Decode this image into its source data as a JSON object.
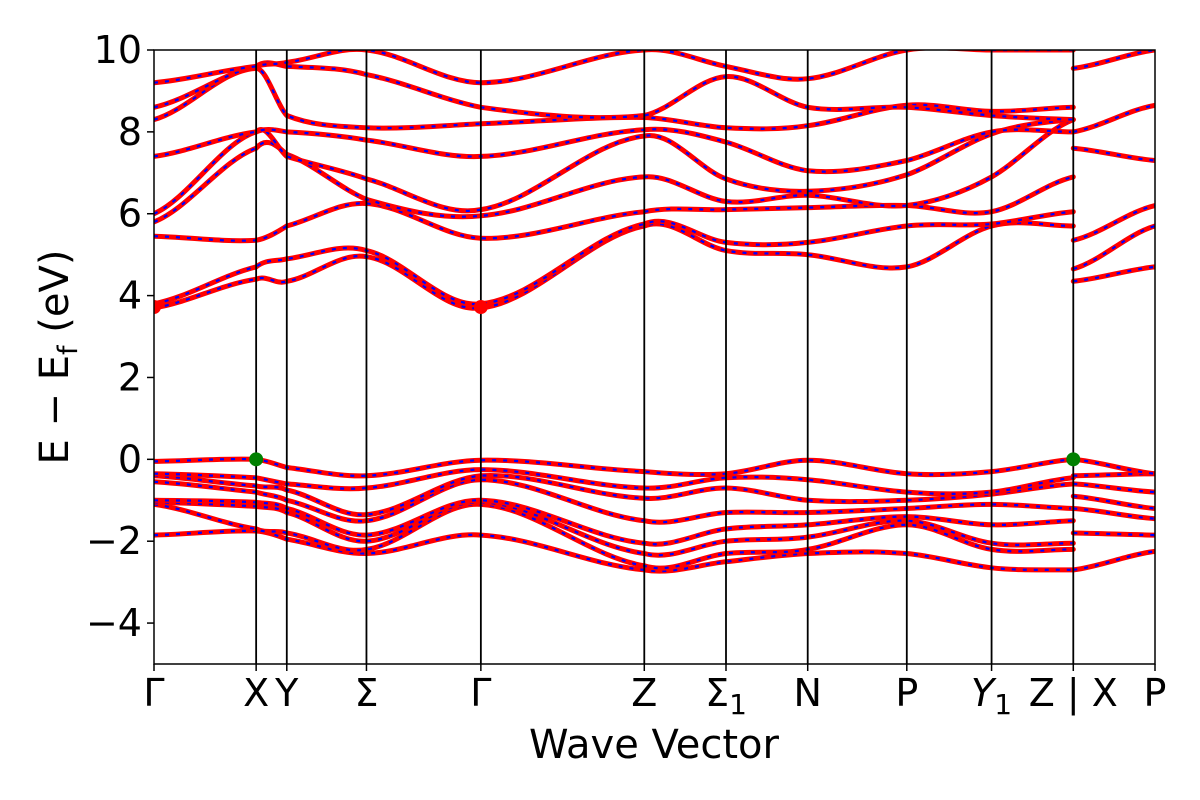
{
  "chart_data": {
    "type": "line",
    "xlabel": "Wave Vector",
    "ylabel": "E − E",
    "ylabel_sub": "f",
    "ylabel_units": " (eV)",
    "ylim": [
      -5,
      10
    ],
    "y_ticks": [
      -4,
      -2,
      0,
      2,
      4,
      6,
      8,
      10
    ],
    "y_tick_labels": [
      "−4",
      "−2",
      "0",
      "2",
      "4",
      "6",
      "8",
      "10"
    ],
    "x_range": [
      0,
      9.8
    ],
    "k_points": [
      {
        "label": "Γ",
        "sub": "",
        "x": 0
      },
      {
        "label": "X",
        "sub": "",
        "x": 1.0
      },
      {
        "label": "Y",
        "sub": "",
        "x": 1.3
      },
      {
        "label": "Σ",
        "sub": "",
        "x": 2.08
      },
      {
        "label": "Γ",
        "sub": "",
        "x": 3.2
      },
      {
        "label": "Z",
        "sub": "",
        "x": 4.8
      },
      {
        "label": "Σ",
        "sub": "1",
        "x": 5.6
      },
      {
        "label": "N",
        "sub": "",
        "x": 6.4
      },
      {
        "label": "P",
        "sub": "",
        "x": 7.37
      },
      {
        "label": "Y",
        "sub": "1",
        "x": 8.2
      },
      {
        "label": "Z | X",
        "sub": "",
        "x": 9.0
      },
      {
        "label": "P",
        "sub": "",
        "x": 9.8
      }
    ],
    "colors": {
      "band": "#ff0000",
      "dash": "#0000ff",
      "cbm": "#ff0000",
      "vbm": "#008000"
    },
    "bands_segment_1": [
      {
        "x": [
          0,
          1.0,
          1.3,
          2.08,
          3.2,
          4.8,
          5.6,
          6.4,
          7.37,
          8.2,
          9.0
        ],
        "y": [
          -1.85,
          -1.75,
          -1.95,
          -2.3,
          -1.85,
          -2.7,
          -2.5,
          -2.3,
          -2.3,
          -2.65,
          -2.7
        ]
      },
      {
        "x": [
          0,
          1.0,
          1.3,
          2.08,
          3.2,
          4.8,
          5.6,
          6.4,
          7.37,
          8.2,
          9.0
        ],
        "y": [
          -1.1,
          -1.7,
          -1.8,
          -2.2,
          -1.1,
          -2.6,
          -2.3,
          -2.2,
          -1.6,
          -2.2,
          -2.2
        ]
      },
      {
        "x": [
          0,
          1.0,
          1.3,
          2.08,
          3.2,
          4.8,
          5.6,
          6.4,
          7.37,
          8.2,
          9.0
        ],
        "y": [
          -1.05,
          -1.15,
          -1.3,
          -2.0,
          -1.05,
          -2.3,
          -2.0,
          -1.9,
          -1.5,
          -2.05,
          -2.05
        ]
      },
      {
        "x": [
          0,
          1.0,
          1.3,
          2.08,
          3.2,
          4.8,
          5.6,
          6.4,
          7.37,
          8.2,
          9.0
        ],
        "y": [
          -1.0,
          -1.05,
          -1.2,
          -1.85,
          -1.0,
          -2.05,
          -1.7,
          -1.6,
          -1.4,
          -1.6,
          -1.5
        ]
      },
      {
        "x": [
          0,
          1.0,
          1.3,
          2.08,
          3.2,
          4.8,
          5.6,
          6.4,
          7.37,
          8.2,
          9.0
        ],
        "y": [
          -0.55,
          -0.8,
          -1.0,
          -1.5,
          -0.5,
          -1.5,
          -1.3,
          -1.3,
          -1.2,
          -1.1,
          -1.2
        ]
      },
      {
        "x": [
          0,
          1.0,
          1.3,
          2.08,
          3.2,
          4.8,
          5.6,
          6.4,
          7.37,
          8.2,
          9.0
        ],
        "y": [
          -0.4,
          -0.65,
          -0.75,
          -1.35,
          -0.4,
          -0.95,
          -0.7,
          -1.0,
          -1.0,
          -0.85,
          -0.6
        ]
      },
      {
        "x": [
          0,
          1.0,
          1.3,
          2.08,
          3.2,
          4.8,
          5.6,
          6.4,
          7.37,
          8.2,
          9.0
        ],
        "y": [
          -0.35,
          -0.45,
          -0.6,
          -0.7,
          -0.25,
          -0.7,
          -0.45,
          -0.5,
          -0.8,
          -0.8,
          -0.45
        ]
      },
      {
        "x": [
          0,
          1.0,
          1.3,
          2.08,
          3.2,
          4.8,
          5.6,
          6.4,
          7.37,
          8.2,
          9.0
        ],
        "y": [
          -0.05,
          0.0,
          -0.2,
          -0.4,
          -0.02,
          -0.3,
          -0.35,
          -0.02,
          -0.35,
          -0.3,
          0.0
        ]
      },
      {
        "x": [
          0,
          1.0,
          1.3,
          2.08,
          3.2,
          4.8,
          5.6,
          6.4,
          7.37,
          8.2,
          9.0
        ],
        "y": [
          3.7,
          4.4,
          4.35,
          4.95,
          3.7,
          5.7,
          5.1,
          5.0,
          4.7,
          5.7,
          5.7
        ]
      },
      {
        "x": [
          0,
          1.0,
          1.3,
          2.08,
          3.2,
          4.8,
          5.6,
          6.4,
          7.37,
          8.2,
          9.0
        ],
        "y": [
          3.8,
          4.7,
          4.9,
          5.1,
          3.8,
          5.75,
          5.3,
          5.3,
          5.7,
          5.75,
          6.05
        ]
      },
      {
        "x": [
          0,
          1.0,
          1.3,
          2.08,
          3.2,
          4.8,
          5.6,
          6.4,
          7.37,
          8.2,
          9.0
        ],
        "y": [
          5.45,
          5.35,
          5.7,
          6.25,
          5.4,
          6.05,
          6.1,
          6.15,
          6.2,
          6.05,
          6.9
        ]
      },
      {
        "x": [
          0,
          1.0,
          1.3,
          2.08,
          3.2,
          4.8,
          5.6,
          6.4,
          7.37,
          8.2,
          9.0
        ],
        "y": [
          5.8,
          7.6,
          7.45,
          6.35,
          5.95,
          6.9,
          6.3,
          6.45,
          6.2,
          6.9,
          8.3
        ]
      },
      {
        "x": [
          0,
          1.0,
          1.3,
          2.08,
          3.2,
          4.8,
          5.6,
          6.4,
          7.37,
          8.2,
          9.0
        ],
        "y": [
          6.0,
          8.0,
          7.4,
          6.85,
          6.1,
          7.9,
          6.85,
          6.55,
          6.95,
          7.95,
          8.3
        ]
      },
      {
        "x": [
          0,
          1.0,
          1.3,
          2.08,
          3.2,
          4.8,
          5.6,
          6.4,
          7.37,
          8.2,
          9.0
        ],
        "y": [
          7.4,
          8.0,
          8.0,
          7.8,
          7.4,
          8.05,
          7.75,
          7.05,
          7.3,
          8.0,
          8.0
        ]
      },
      {
        "x": [
          0,
          1.0,
          1.3,
          2.08,
          3.2,
          4.8,
          5.6,
          6.4,
          7.37,
          8.2,
          9.0
        ],
        "y": [
          8.3,
          9.55,
          8.4,
          8.1,
          8.2,
          8.35,
          8.1,
          8.15,
          8.65,
          8.5,
          8.6
        ]
      },
      {
        "x": [
          0,
          1.0,
          1.3,
          2.08,
          3.2,
          4.8,
          5.6,
          6.4,
          7.37,
          8.2,
          9.0
        ],
        "y": [
          8.6,
          9.6,
          9.6,
          9.4,
          8.6,
          8.4,
          9.35,
          8.6,
          8.6,
          8.4,
          8.3
        ]
      },
      {
        "x": [
          0,
          1.0,
          1.3,
          2.08,
          3.2,
          4.8,
          5.6,
          6.4,
          7.37,
          8.2,
          9.0
        ],
        "y": [
          9.2,
          9.6,
          9.7,
          10.0,
          9.2,
          10.0,
          9.6,
          9.3,
          10.0,
          10.0,
          10.0
        ]
      }
    ],
    "bands_segment_2": [
      {
        "x": [
          9.0,
          9.8
        ],
        "y": [
          -2.7,
          -2.25
        ]
      },
      {
        "x": [
          9.0,
          9.8
        ],
        "y": [
          -1.8,
          -1.85
        ]
      },
      {
        "x": [
          9.0,
          9.8
        ],
        "y": [
          -1.2,
          -1.45
        ]
      },
      {
        "x": [
          9.0,
          9.8
        ],
        "y": [
          -0.9,
          -1.2
        ]
      },
      {
        "x": [
          9.0,
          9.8
        ],
        "y": [
          -0.6,
          -0.8
        ]
      },
      {
        "x": [
          9.0,
          9.8
        ],
        "y": [
          -0.4,
          -0.35
        ]
      },
      {
        "x": [
          9.0,
          9.8
        ],
        "y": [
          0.0,
          -0.35
        ]
      },
      {
        "x": [
          9.0,
          9.8
        ],
        "y": [
          4.35,
          4.7
        ]
      },
      {
        "x": [
          9.0,
          9.8
        ],
        "y": [
          4.65,
          5.7
        ]
      },
      {
        "x": [
          9.0,
          9.8
        ],
        "y": [
          5.35,
          6.2
        ]
      },
      {
        "x": [
          9.0,
          9.8
        ],
        "y": [
          7.6,
          7.3
        ]
      },
      {
        "x": [
          9.0,
          9.8
        ],
        "y": [
          8.0,
          8.65
        ]
      },
      {
        "x": [
          9.0,
          9.8
        ],
        "y": [
          9.55,
          10.0
        ]
      }
    ],
    "markers": [
      {
        "name": "cbm",
        "x": 0,
        "y": 3.72,
        "color": "#ff0000"
      },
      {
        "name": "cbm",
        "x": 3.2,
        "y": 3.72,
        "color": "#ff0000"
      },
      {
        "name": "vbm",
        "x": 1.0,
        "y": 0.0,
        "color": "#008000"
      },
      {
        "name": "vbm",
        "x": 9.0,
        "y": 0.0,
        "color": "#008000"
      }
    ]
  }
}
